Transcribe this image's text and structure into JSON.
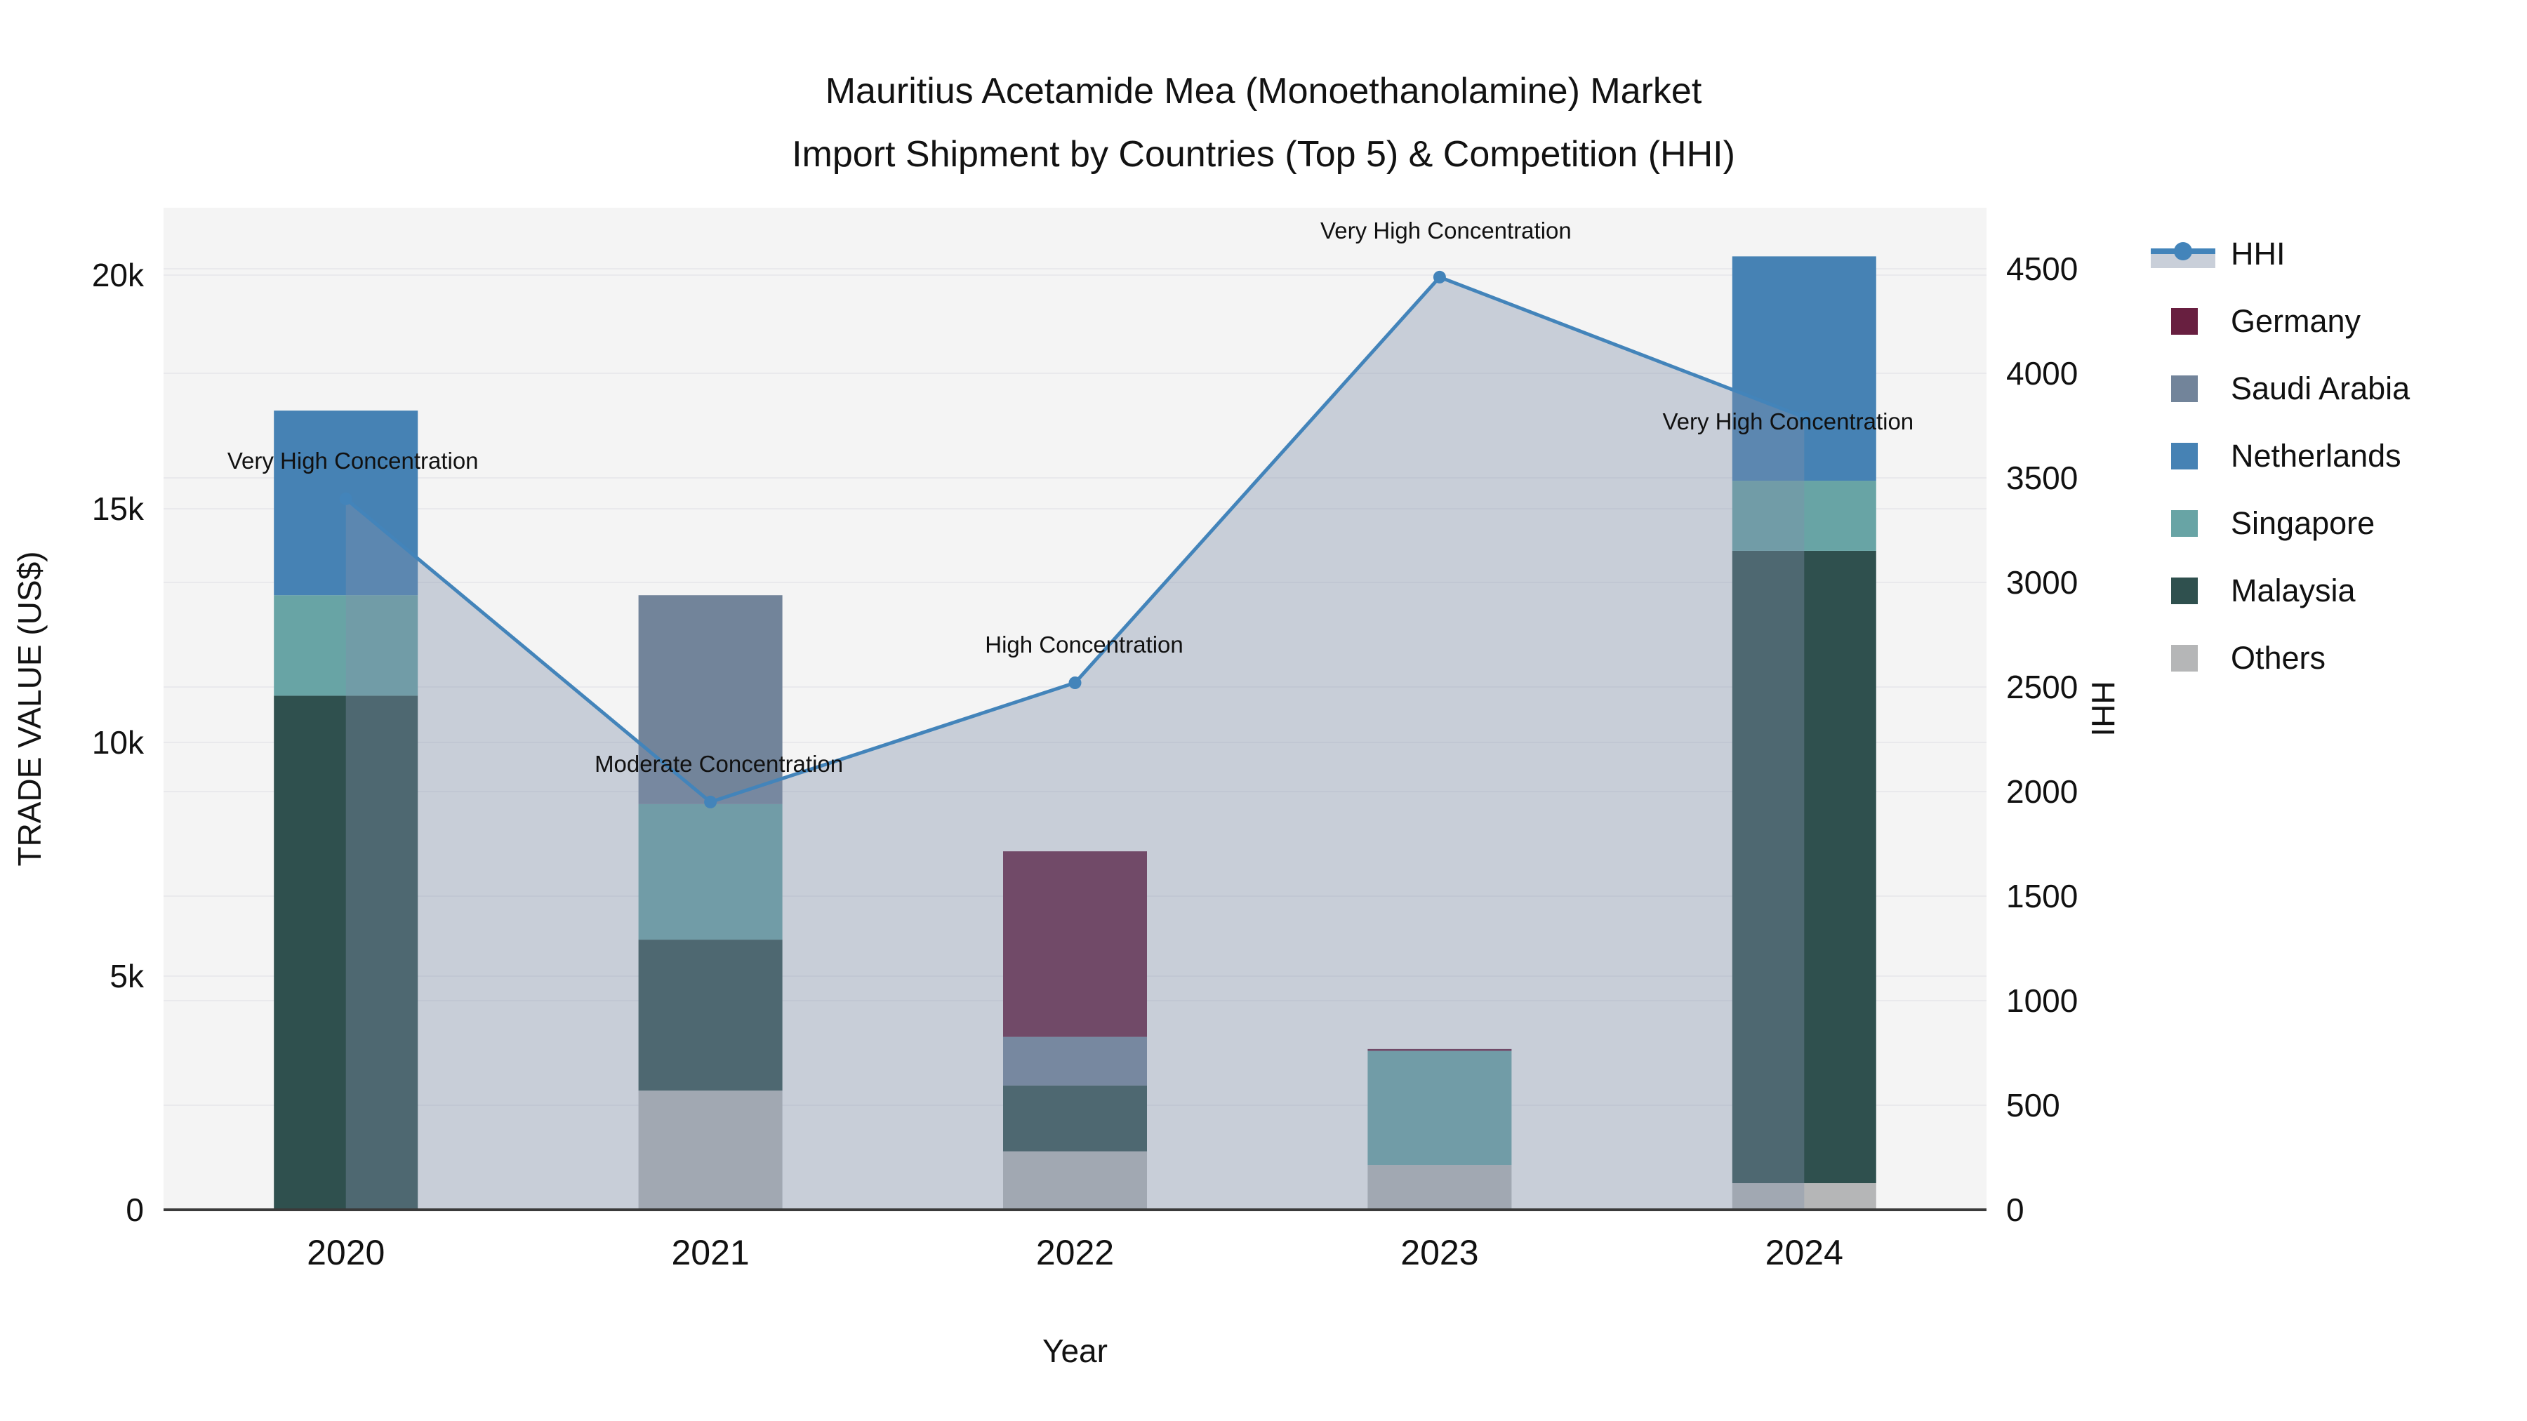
{
  "title": {
    "line1": "Mauritius Acetamide Mea (Monoethanolamine) Market",
    "line2": "Import Shipment by Countries (Top 5) & Competition (HHI)"
  },
  "axes": {
    "x_title": "Year",
    "y_left_title": "TRADE VALUE (US$)",
    "y_right_title": "HHI",
    "y_left_tick_labels": [
      "0",
      "5k",
      "10k",
      "15k",
      "20k"
    ],
    "y_left_tick_values": [
      0,
      5000,
      10000,
      15000,
      20000
    ],
    "y_right_tick_labels": [
      "0",
      "500",
      "1000",
      "1500",
      "2000",
      "2500",
      "3000",
      "3500",
      "4000",
      "4500"
    ],
    "y_right_tick_values": [
      0,
      500,
      1000,
      1500,
      2000,
      2500,
      3000,
      3500,
      4000,
      4500
    ]
  },
  "colors": {
    "plot_bg": "#f4f4f4",
    "grid": "#e9e9ec",
    "axis_line": "#3a3a3a",
    "text": "#111111",
    "hhi_line": "#4384ba",
    "hhi_fill": "rgba(130,145,170,0.38)"
  },
  "chart_data": {
    "type": "bar+line",
    "title": "Mauritius Acetamide Mea (Monoethanolamine) Market Import Shipment by Countries (Top 5) & Competition (HHI)",
    "xlabel": "Year",
    "ylabel_left": "TRADE VALUE (US$)",
    "ylabel_right": "HHI",
    "categories": [
      "2020",
      "2021",
      "2022",
      "2023",
      "2024"
    ],
    "stack_order_bottom_to_top": [
      "Others",
      "Malaysia",
      "Singapore",
      "Saudi Arabia",
      "Netherlands",
      "Germany"
    ],
    "series": [
      {
        "name": "Germany",
        "color": "#681f40",
        "values": [
          0,
          0,
          3970,
          40,
          0
        ]
      },
      {
        "name": "Saudi Arabia",
        "color": "#72849a",
        "values": [
          0,
          4470,
          1040,
          0,
          0
        ]
      },
      {
        "name": "Netherlands",
        "color": "#4682b4",
        "values": [
          3950,
          0,
          0,
          0,
          4800
        ]
      },
      {
        "name": "Singapore",
        "color": "#68a4a5",
        "values": [
          2150,
          2900,
          0,
          2440,
          1500
        ]
      },
      {
        "name": "Malaysia",
        "color": "#2f504e",
        "values": [
          11000,
          3230,
          1410,
          0,
          13530
        ]
      },
      {
        "name": "Others",
        "color": "#b5b6b7",
        "values": [
          0,
          2550,
          1250,
          960,
          570
        ]
      }
    ],
    "bar_totals": [
      17100,
      13150,
      7670,
      3440,
      20400
    ],
    "hhi": {
      "name": "HHI",
      "values": [
        3400,
        1950,
        2520,
        4460,
        3790
      ]
    },
    "annotations": [
      {
        "year": "2020",
        "text": "Very High Concentration",
        "y_hhi": 3580,
        "dx": 10
      },
      {
        "year": "2021",
        "text": "Moderate Concentration",
        "y_hhi": 2130,
        "dx": 12
      },
      {
        "year": "2022",
        "text": "High Concentration",
        "y_hhi": 2700,
        "dx": 13
      },
      {
        "year": "2023",
        "text": "Very High Concentration",
        "y_hhi": 4680,
        "dx": 9
      },
      {
        "year": "2024",
        "text": "Very High Concentration",
        "y_hhi": 3770,
        "dx": -23
      }
    ],
    "ylim_left": [
      0,
      21440
    ],
    "ylim_right": [
      0,
      4790
    ],
    "legend_order": [
      "HHI",
      "Germany",
      "Saudi Arabia",
      "Netherlands",
      "Singapore",
      "Malaysia",
      "Others"
    ],
    "legend_position": "right",
    "grid": "on"
  }
}
